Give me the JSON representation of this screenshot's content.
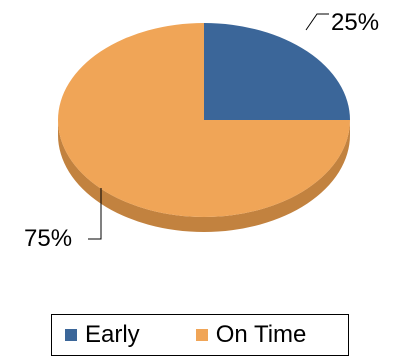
{
  "chart_data": {
    "type": "pie",
    "categories": [
      "Early",
      "On Time"
    ],
    "values": [
      25,
      75
    ],
    "data_labels": [
      "25%",
      "75%"
    ],
    "colors": [
      "#3b6699",
      "#f0a557"
    ],
    "side_colors": [
      "#2c4d75",
      "#c2823f"
    ],
    "legend": {
      "position": "bottom",
      "entries": [
        "Early",
        "On Time"
      ]
    },
    "style": "3d-tilted"
  }
}
